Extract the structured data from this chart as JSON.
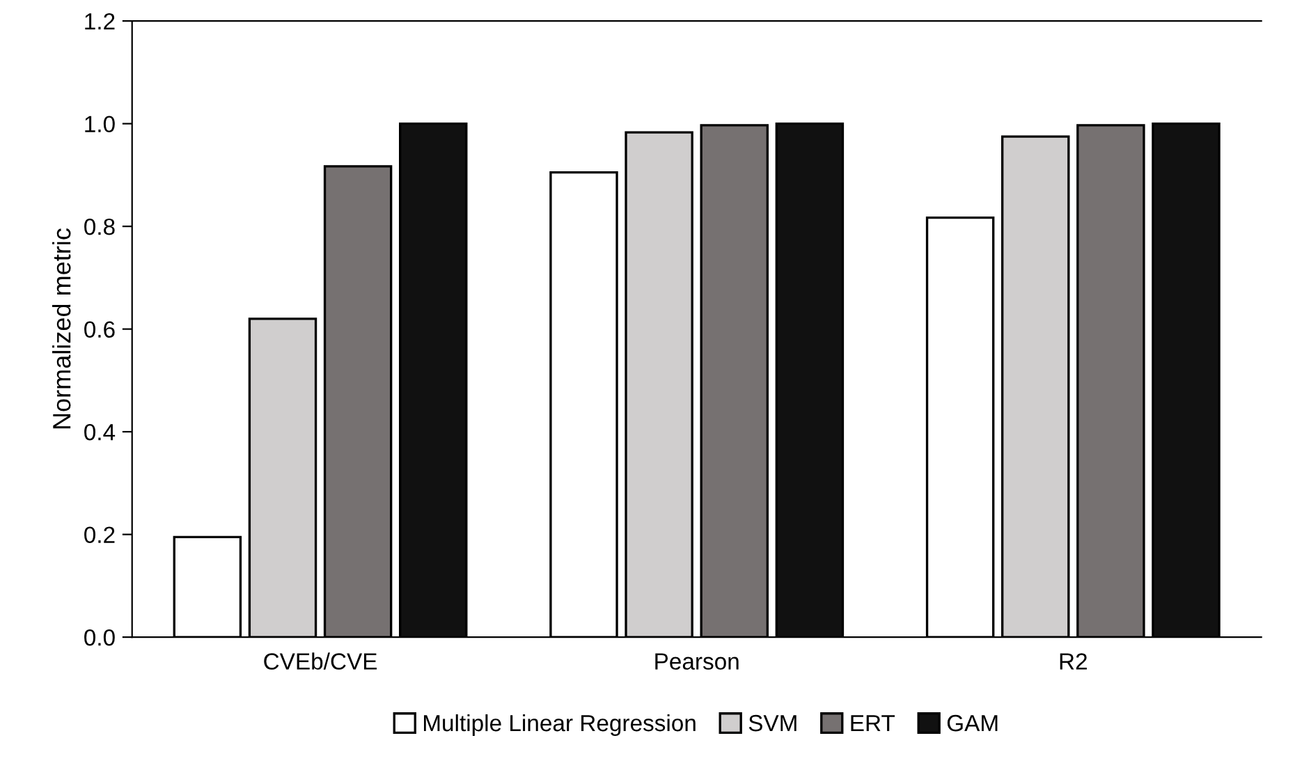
{
  "chart_data": {
    "type": "bar",
    "ylabel": "Normalized metric",
    "categories": [
      "CVEb/CVE",
      "Pearson",
      "R2"
    ],
    "series": [
      {
        "name": "Multiple Linear Regression",
        "color": "#ffffff",
        "values": [
          0.195,
          0.905,
          0.817
        ]
      },
      {
        "name": "SVM",
        "color": "#d0cece",
        "values": [
          0.62,
          0.983,
          0.975
        ]
      },
      {
        "name": "ERT",
        "color": "#767171",
        "values": [
          0.917,
          0.997,
          0.997
        ]
      },
      {
        "name": "GAM",
        "color": "#111111",
        "values": [
          1.0,
          1.0,
          1.0
        ]
      }
    ],
    "ylim": [
      0,
      1.2
    ],
    "yticks": [
      {
        "value": 0,
        "label": "0.0"
      },
      0.2,
      0.4,
      0.6,
      0.8,
      {
        "value": 1,
        "label": "1.0"
      },
      1.2
    ],
    "grid": false,
    "legend": "bottom"
  }
}
